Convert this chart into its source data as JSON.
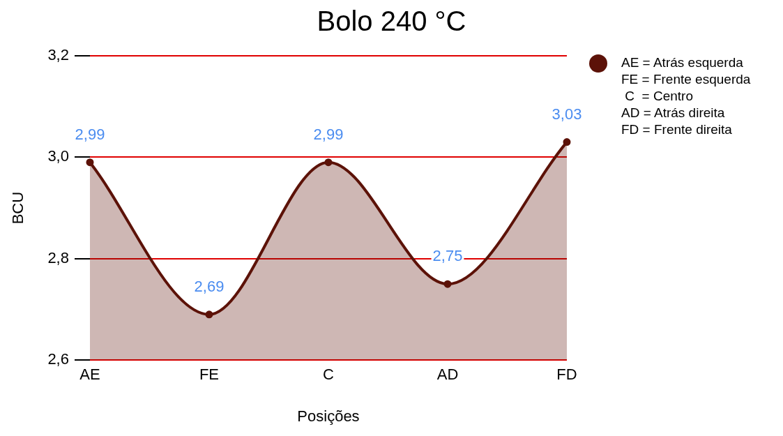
{
  "chart_data": {
    "type": "area",
    "title": "Bolo 240 °C",
    "xlabel": "Posições",
    "ylabel": "BCU",
    "categories": [
      "AE",
      "FE",
      "C",
      "AD",
      "FD"
    ],
    "series": [
      {
        "name": "AE = Atrás esquerda\nFE = Frente esquerda\n C  = Centro\nAD = Atrás direita\nFD = Frente direita",
        "color": "#5c1208",
        "values": [
          2.99,
          2.69,
          2.99,
          2.75,
          3.03
        ],
        "value_labels": [
          "2,99",
          "2,69",
          "2,99",
          "2,75",
          "3,03"
        ]
      }
    ],
    "ylim": [
      2.6,
      3.2
    ],
    "yticks": [
      {
        "value": 2.6,
        "label": "2,6"
      },
      {
        "value": 2.8,
        "label": "2,8"
      },
      {
        "value": 3.0,
        "label": "3,0"
      },
      {
        "value": 3.2,
        "label": "3,2"
      }
    ],
    "grid": "y",
    "legend": "top right",
    "marker": "circle"
  }
}
